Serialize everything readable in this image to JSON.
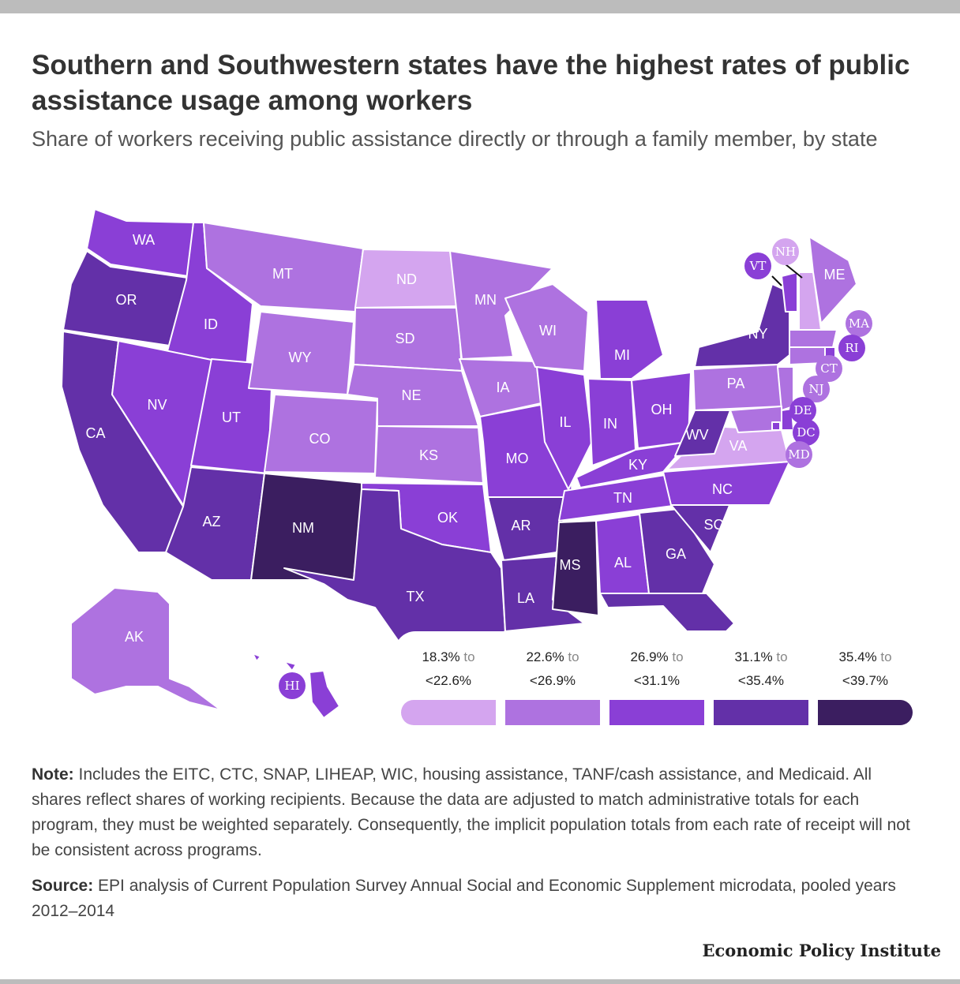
{
  "title": "Southern and Southwestern states have the highest rates of public assistance usage among workers",
  "subtitle": "Share of workers receiving public assistance directly or through a family member, by state",
  "legend": [
    {
      "from": "18.3%",
      "to_word": "to",
      "to": "<22.6%",
      "color": "#d4a5ef"
    },
    {
      "from": "22.6%",
      "to_word": "to",
      "to": "<26.9%",
      "color": "#ae72e0"
    },
    {
      "from": "26.9%",
      "to_word": "to",
      "to": "<31.1%",
      "color": "#8a3fd6"
    },
    {
      "from": "31.1%",
      "to_word": "to",
      "to": "<35.4%",
      "color": "#6330a8"
    },
    {
      "from": "35.4%",
      "to_word": "to",
      "to": "<39.7%",
      "color": "#3b1e60"
    }
  ],
  "chart_data": {
    "type": "map",
    "bins": [
      "18.3% to <22.6%",
      "22.6% to <26.9%",
      "26.9% to <31.1%",
      "31.1% to <35.4%",
      "35.4% to <39.7%"
    ],
    "states": {
      "WA": 2,
      "OR": 3,
      "CA": 3,
      "ID": 2,
      "NV": 2,
      "UT": 2,
      "AZ": 3,
      "MT": 1,
      "WY": 1,
      "CO": 1,
      "NM": 4,
      "ND": 0,
      "SD": 1,
      "NE": 1,
      "KS": 1,
      "OK": 2,
      "TX": 3,
      "MN": 1,
      "IA": 1,
      "MO": 2,
      "AR": 3,
      "LA": 3,
      "WI": 1,
      "IL": 2,
      "MI": 2,
      "IN": 2,
      "OH": 2,
      "KY": 2,
      "TN": 2,
      "MS": 4,
      "AL": 2,
      "GA": 3,
      "FL": 3,
      "SC": 3,
      "NC": 2,
      "VA": 0,
      "WV": 3,
      "PA": 1,
      "NY": 3,
      "VT": 2,
      "NH": 0,
      "ME": 1,
      "MA": 1,
      "RI": 2,
      "CT": 1,
      "NJ": 1,
      "DE": 2,
      "MD": 1,
      "DC": 2,
      "AK": 1,
      "HI": 2
    }
  },
  "labels": {
    "WA": "WA",
    "OR": "OR",
    "CA": "CA",
    "ID": "ID",
    "NV": "NV",
    "UT": "UT",
    "AZ": "AZ",
    "MT": "MT",
    "WY": "WY",
    "CO": "CO",
    "NM": "NM",
    "ND": "ND",
    "SD": "SD",
    "NE": "NE",
    "KS": "KS",
    "OK": "OK",
    "TX": "TX",
    "MN": "MN",
    "IA": "IA",
    "MO": "MO",
    "AR": "AR",
    "LA": "LA",
    "WI": "WI",
    "IL": "IL",
    "MI": "MI",
    "IN": "IN",
    "OH": "OH",
    "KY": "KY",
    "TN": "TN",
    "MS": "MS",
    "AL": "AL",
    "GA": "GA",
    "SC": "SC",
    "NC": "NC",
    "VA": "VA",
    "WV": "WV",
    "PA": "PA",
    "NY": "NY",
    "ME": "ME",
    "AK": "AK",
    "VT": "VT",
    "NH": "NH",
    "MA": "MA",
    "RI": "RI",
    "CT": "CT",
    "NJ": "NJ",
    "DE": "DE",
    "DC": "DC",
    "MD": "MD",
    "HI": "HI"
  },
  "note_label": "Note:",
  "note": "Includes the EITC, CTC, SNAP, LIHEAP, WIC, housing assistance, TANF/cash assistance, and Medicaid. All shares reflect shares of working recipients. Because the data are adjusted to match administrative totals for each program, they must be weighted separately. Consequently, the implicit population totals from each rate of receipt will not be consistent across programs.",
  "source_label": "Source:",
  "source": "EPI analysis of Current Population Survey Annual Social and Economic Supplement microdata, pooled years 2012–2014",
  "brand": "Economic Policy Institute"
}
